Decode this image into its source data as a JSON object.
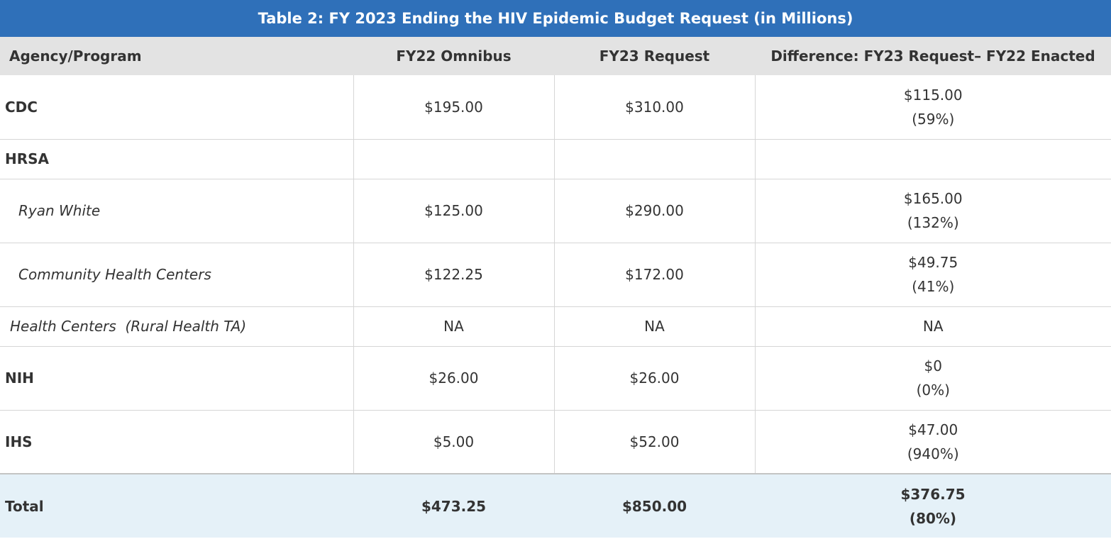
{
  "title": "Table 2: FY 2023 Ending the HIV Epidemic Budget Request (in Millions)",
  "headers": {
    "agency": "Agency/Program",
    "fy22": "FY22 Omnibus",
    "fy23": "FY23 Request",
    "difference": "Difference: FY23 Request– FY22 Enacted"
  },
  "rows": [
    {
      "label": "CDC",
      "fy22": "$195.00",
      "fy23": "$310.00",
      "diff": "$115.00",
      "pct": "(59%)"
    },
    {
      "label": "HRSA",
      "fy22": "",
      "fy23": "",
      "diff": "",
      "pct": ""
    },
    {
      "label": "Ryan White",
      "fy22": "$125.00",
      "fy23": "$290.00",
      "diff": "$165.00",
      "pct": "(132%)"
    },
    {
      "label": "Community Health Centers",
      "fy22": "$122.25",
      "fy23": "$172.00",
      "diff": "$49.75",
      "pct": "(41%)"
    },
    {
      "label": "Health Centers  (Rural Health TA)",
      "fy22": "NA",
      "fy23": "NA",
      "diff": "NA",
      "pct": ""
    },
    {
      "label": "NIH",
      "fy22": "$26.00",
      "fy23": "$26.00",
      "diff": "$0",
      "pct": "(0%)"
    },
    {
      "label": "IHS",
      "fy22": "$5.00",
      "fy23": "$52.00",
      "diff": "$47.00",
      "pct": "(940%)"
    }
  ],
  "total": {
    "label": "Total",
    "fy22": "$473.25",
    "fy23": "$850.00",
    "diff": "$376.75",
    "pct": "(80%)"
  },
  "colors": {
    "title_bg": "#2f70b9",
    "header_bg": "#e3e3e3",
    "total_bg": "#e5f1f8"
  }
}
